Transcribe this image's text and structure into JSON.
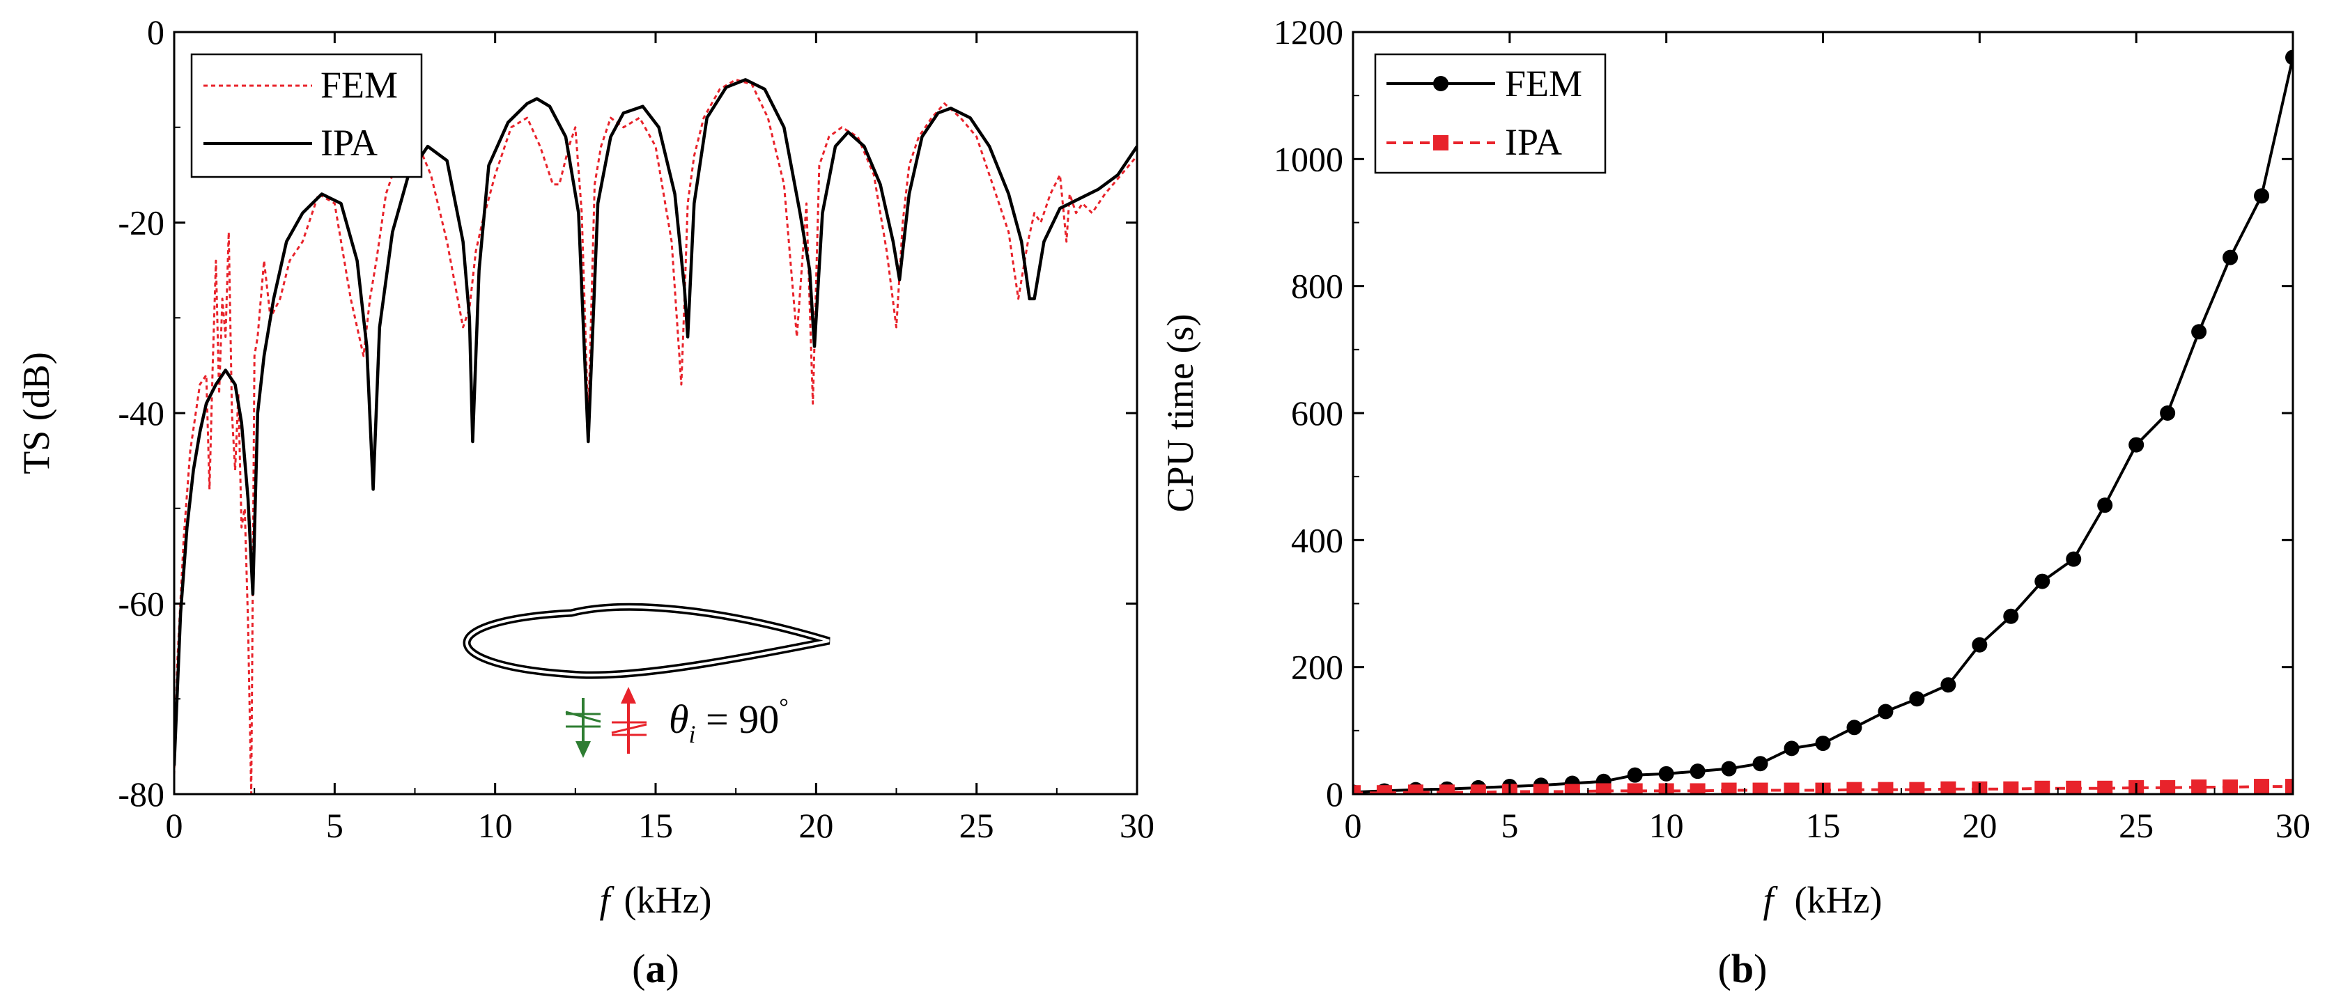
{
  "colors": {
    "fem_a": "#e8232b",
    "ipa_a": "#000000",
    "fem_b": "#000000",
    "ipa_b": "#e8232b",
    "arrow_down": "#2e7d32",
    "arrow_up": "#e8232b"
  },
  "chart_data": [
    {
      "type": "line",
      "panel": "a",
      "caption": {
        "open": "(",
        "letter": "a",
        "close": ")"
      },
      "xlabel": {
        "var": "f",
        "unit": "(kHz)"
      },
      "ylabel": "TS (dB)",
      "xlim": [
        0,
        30
      ],
      "ylim": [
        -80,
        0
      ],
      "xticks": [
        0,
        5,
        10,
        15,
        20,
        25,
        30
      ],
      "yticks": [
        -80,
        -60,
        -40,
        -20,
        0
      ],
      "legend_position": "top-left",
      "annotation": {
        "theta": "θ",
        "sub": "i",
        "eq": " = 90",
        "deg": "°"
      },
      "series": [
        {
          "name": "FEM",
          "style": "dotted",
          "x": [
            0.0,
            0.1,
            0.3,
            0.5,
            0.8,
            1.0,
            1.1,
            1.2,
            1.3,
            1.4,
            1.5,
            1.6,
            1.7,
            1.8,
            1.9,
            2.0,
            2.1,
            2.2,
            2.3,
            2.4,
            2.5,
            2.6,
            2.8,
            3.0,
            3.3,
            3.6,
            4.0,
            4.5,
            5.0,
            5.5,
            5.9,
            6.1,
            6.3,
            6.6,
            7.0,
            7.5,
            8.0,
            8.5,
            9.0,
            9.2,
            9.4,
            9.6,
            10.0,
            10.5,
            11.0,
            11.4,
            11.8,
            12.0,
            12.3,
            12.5,
            12.7,
            12.9,
            13.1,
            13.3,
            13.6,
            14.0,
            14.5,
            15.0,
            15.5,
            15.8,
            15.9,
            16.0,
            16.2,
            16.5,
            17.0,
            17.5,
            18.0,
            18.5,
            19.0,
            19.4,
            19.7,
            19.9,
            20.1,
            20.4,
            20.8,
            21.3,
            21.8,
            22.2,
            22.5,
            22.7,
            22.9,
            23.2,
            23.6,
            24.0,
            24.5,
            25.0,
            25.5,
            26.0,
            26.3,
            26.6,
            26.8,
            27.0,
            27.3,
            27.6,
            27.8,
            27.9,
            28.1,
            28.3,
            28.6,
            29.0,
            29.5,
            30.0
          ],
          "y": [
            -78,
            -66,
            -53,
            -44,
            -37,
            -36,
            -48,
            -35,
            -24,
            -38,
            -28,
            -32,
            -21,
            -40,
            -46,
            -38,
            -52,
            -50,
            -62,
            -80,
            -34,
            -32,
            -24,
            -30,
            -28,
            -24,
            -22,
            -17,
            -18,
            -28,
            -34,
            -28,
            -24,
            -17,
            -13,
            -11,
            -15,
            -22,
            -31,
            -29,
            -23,
            -20,
            -15,
            -10,
            -9,
            -12,
            -16,
            -16,
            -12,
            -10,
            -19,
            -41,
            -16,
            -12,
            -9,
            -10,
            -9,
            -12,
            -22,
            -37,
            -28,
            -18,
            -13,
            -9,
            -6,
            -5,
            -5.5,
            -9,
            -16,
            -32,
            -18,
            -39,
            -14,
            -11,
            -10,
            -11,
            -15,
            -23,
            -31,
            -20,
            -14,
            -11,
            -9,
            -7.5,
            -9,
            -11,
            -16,
            -21,
            -28,
            -22,
            -19,
            -20,
            -17,
            -15,
            -22,
            -17,
            -19,
            -18,
            -19,
            -17,
            -15,
            -13
          ]
        },
        {
          "name": "IPA",
          "style": "solid",
          "x": [
            0.0,
            0.1,
            0.2,
            0.4,
            0.6,
            0.8,
            1.0,
            1.3,
            1.6,
            1.9,
            2.1,
            2.3,
            2.45,
            2.6,
            2.8,
            3.1,
            3.5,
            4.0,
            4.6,
            5.2,
            5.7,
            6.0,
            6.2,
            6.4,
            6.8,
            7.3,
            7.9,
            8.5,
            9.0,
            9.2,
            9.3,
            9.5,
            9.8,
            10.4,
            11.0,
            11.3,
            11.7,
            12.2,
            12.6,
            12.9,
            13.2,
            13.6,
            14.0,
            14.6,
            15.1,
            15.6,
            15.9,
            16.0,
            16.2,
            16.6,
            17.2,
            17.8,
            18.4,
            19.0,
            19.5,
            19.8,
            19.95,
            20.2,
            20.6,
            21.0,
            21.5,
            22.0,
            22.4,
            22.6,
            22.9,
            23.3,
            23.8,
            24.2,
            24.8,
            25.4,
            26.0,
            26.4,
            26.65,
            26.8,
            27.1,
            27.6,
            28.2,
            28.8,
            29.4,
            30.0
          ],
          "y": [
            -77,
            -69,
            -61,
            -52,
            -46,
            -42,
            -39,
            -37,
            -35.5,
            -37,
            -41,
            -49,
            -59,
            -40,
            -34,
            -28,
            -22,
            -19,
            -17,
            -18,
            -24,
            -33,
            -48,
            -31,
            -21,
            -15,
            -12,
            -13.5,
            -22,
            -30,
            -43,
            -25,
            -14,
            -9.5,
            -7.5,
            -7,
            -7.8,
            -11,
            -19,
            -43,
            -18,
            -11,
            -8.5,
            -7.8,
            -10,
            -17,
            -27,
            -32,
            -18,
            -9,
            -5.8,
            -5,
            -6,
            -10,
            -19,
            -25,
            -33,
            -19,
            -12,
            -10.5,
            -12,
            -16,
            -22,
            -26,
            -17,
            -11,
            -8.5,
            -8,
            -9,
            -12,
            -17,
            -22,
            -28,
            -28,
            -22,
            -18.5,
            -17.5,
            -16.5,
            -15,
            -12
          ]
        }
      ]
    },
    {
      "type": "line",
      "panel": "b",
      "caption": {
        "open": "(",
        "letter": "b",
        "close": ")"
      },
      "xlabel": {
        "var": "f",
        "unit": "(kHz)"
      },
      "ylabel": "CPU time (s)",
      "xlim": [
        0,
        30
      ],
      "ylim": [
        0,
        1200
      ],
      "xticks": [
        0,
        5,
        10,
        15,
        20,
        25,
        30
      ],
      "yticks": [
        0,
        200,
        400,
        600,
        800,
        1000,
        1200
      ],
      "legend_position": "top-left",
      "series": [
        {
          "name": "FEM",
          "style": "solid-circle",
          "x": [
            0,
            1,
            2,
            3,
            4,
            5,
            6,
            7,
            8,
            9,
            10,
            11,
            12,
            13,
            14,
            15,
            16,
            17,
            18,
            19,
            20,
            21,
            22,
            23,
            24,
            25,
            26,
            27,
            28,
            29,
            30
          ],
          "y": [
            3,
            5,
            7,
            8,
            10,
            12,
            14,
            17,
            20,
            30,
            32,
            36,
            40,
            48,
            72,
            80,
            105,
            130,
            150,
            172,
            235,
            280,
            335,
            370,
            455,
            550,
            600,
            728,
            845,
            942,
            1160
          ]
        },
        {
          "name": "IPA",
          "style": "dashed-square",
          "x": [
            0,
            1,
            2,
            3,
            4,
            5,
            6,
            7,
            8,
            9,
            10,
            11,
            12,
            13,
            14,
            15,
            16,
            17,
            18,
            19,
            20,
            21,
            22,
            23,
            24,
            25,
            26,
            27,
            28,
            29,
            30
          ],
          "y": [
            2,
            2,
            3,
            3,
            3,
            4,
            4,
            4,
            5,
            5,
            5,
            5,
            6,
            6,
            6,
            6,
            7,
            7,
            7,
            8,
            8,
            8,
            9,
            9,
            9,
            10,
            10,
            11,
            11,
            12,
            12
          ]
        }
      ]
    }
  ]
}
